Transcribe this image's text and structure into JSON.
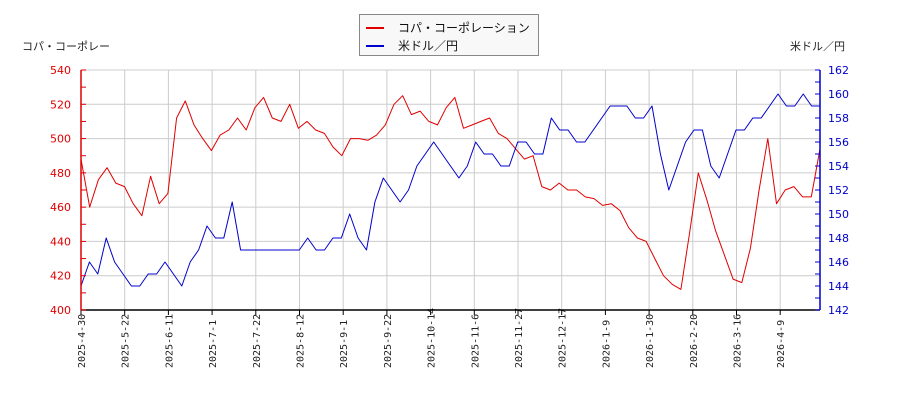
{
  "chart_data": {
    "type": "line",
    "title": "",
    "legend": {
      "position": "top-center",
      "entries": [
        {
          "name": "コパ・コーポレーション",
          "color": "#e00000"
        },
        {
          "name": "米ドル／円",
          "color": "#0000cc"
        }
      ]
    },
    "y_left": {
      "label": "コパ・コーポレー",
      "min": 400,
      "max": 540,
      "ticks": [
        400,
        420,
        440,
        460,
        480,
        500,
        520,
        540
      ],
      "color": "#e00000"
    },
    "y_right": {
      "label": "米ドル／円",
      "min": 142,
      "max": 162,
      "ticks": [
        142,
        144,
        146,
        148,
        150,
        152,
        154,
        156,
        158,
        160,
        162
      ],
      "color": "#0000cc"
    },
    "grid": true,
    "x_ticks": [
      "2025-4-30",
      "2025-5-22",
      "2025-6-11",
      "2025-7-1",
      "2025-7-22",
      "2025-8-12",
      "2025-9-1",
      "2025-9-22",
      "2025-10-14",
      "2025-11-6",
      "2025-11-27",
      "2025-12-17",
      "2026-1-9",
      "2026-1-30",
      "2026-2-20",
      "2026-3-16",
      "2026-4-9"
    ],
    "series": [
      {
        "name": "コパ・コーポレーション",
        "axis": "left",
        "color": "#e00000",
        "points_x_index": [
          0,
          0.2,
          0.4,
          0.6,
          0.8,
          1,
          1.2,
          1.4,
          1.6,
          1.8,
          2,
          2.2,
          2.4,
          2.6,
          2.8,
          3,
          3.2,
          3.4,
          3.6,
          3.8,
          4,
          4.2,
          4.4,
          4.6,
          4.8,
          5,
          5.2,
          5.4,
          5.6,
          5.8,
          6,
          6.2,
          6.4,
          6.6,
          6.8,
          7,
          7.2,
          7.4,
          7.6,
          7.8,
          8,
          8.2,
          8.4,
          8.6,
          8.8,
          9,
          9.2,
          9.4,
          9.6,
          9.8,
          10,
          10.2,
          10.4,
          10.6,
          10.8,
          11,
          11.2,
          11.4,
          11.6,
          11.8,
          12,
          12.2,
          12.4,
          12.6,
          12.8,
          13,
          13.2,
          13.4,
          13.6,
          13.8,
          14,
          14.2,
          14.4,
          14.6,
          14.8,
          15,
          15.2,
          15.4,
          15.6,
          15.8,
          16,
          16.2,
          16.4,
          16.6,
          16.8,
          17
        ],
        "values": [
          488,
          460,
          476,
          483,
          474,
          472,
          462,
          455,
          478,
          462,
          468,
          512,
          522,
          508,
          500,
          493,
          502,
          505,
          512,
          505,
          518,
          524,
          512,
          510,
          520,
          506,
          510,
          505,
          503,
          495,
          490,
          500,
          500,
          499,
          502,
          508,
          520,
          525,
          514,
          516,
          510,
          508,
          518,
          524,
          506,
          508,
          510,
          512,
          503,
          500,
          494,
          488,
          490,
          472,
          470,
          474,
          470,
          470,
          466,
          465,
          461,
          462,
          458,
          448,
          442,
          440,
          430,
          420,
          415,
          412,
          445,
          480,
          464,
          446,
          432,
          418,
          416,
          436,
          470,
          500,
          462,
          470,
          472,
          466,
          466,
          494
        ]
      },
      {
        "name": "米ドル／円",
        "axis": "right",
        "color": "#0000cc",
        "values": [
          144,
          146,
          145,
          148,
          146,
          145,
          144,
          144,
          145,
          145,
          146,
          145,
          144,
          146,
          147,
          149,
          148,
          148,
          151,
          147,
          147,
          147,
          147,
          147,
          147,
          147,
          147,
          148,
          147,
          147,
          148,
          148,
          150,
          148,
          147,
          151,
          153,
          152,
          151,
          152,
          154,
          155,
          156,
          155,
          154,
          153,
          154,
          156,
          155,
          155,
          154,
          154,
          156,
          156,
          155,
          155,
          158,
          157,
          157,
          156,
          156,
          157,
          158,
          159,
          159,
          159,
          158,
          158,
          159,
          155,
          152,
          154,
          156,
          157,
          157,
          154,
          153,
          155,
          157,
          157,
          158,
          158,
          159,
          160,
          159,
          159,
          160,
          159,
          159
        ]
      }
    ]
  },
  "axis_titles": {
    "left": "コパ・コーポレー",
    "right": "米ドル／円"
  },
  "legend": {
    "items": [
      {
        "label": "コパ・コーポレーション",
        "color": "#e00000"
      },
      {
        "label": "米ドル／円",
        "color": "#0000cc"
      }
    ]
  }
}
